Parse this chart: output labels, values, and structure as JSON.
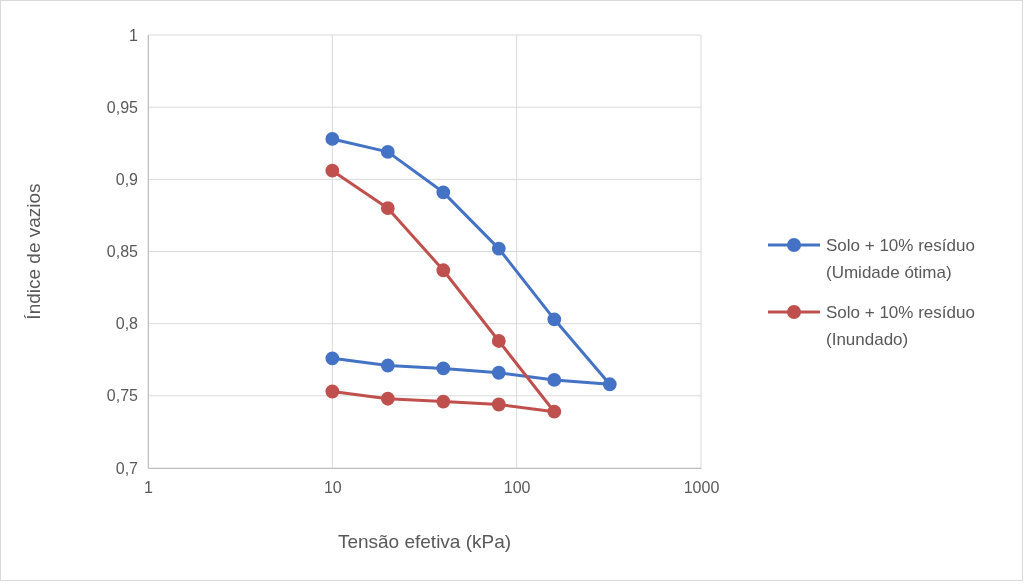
{
  "chart_data": {
    "type": "line",
    "xlabel": "Tensão efetiva (kPa)",
    "ylabel": "Índice de vazios",
    "log": "x",
    "xlim": [
      1,
      1000
    ],
    "xticks": [
      1,
      10,
      100,
      1000
    ],
    "ylim": [
      0.7,
      1
    ],
    "yticks": [
      {
        "value": 0.7,
        "label": "0,7"
      },
      {
        "value": 0.75,
        "label": "0,75"
      },
      {
        "value": 0.8,
        "label": "0,8"
      },
      {
        "value": 0.85,
        "label": "0,85"
      },
      {
        "value": 0.9,
        "label": "0,9"
      },
      {
        "value": 0.95,
        "label": "0,95"
      },
      {
        "value": 1,
        "label": "1"
      }
    ],
    "grid": true,
    "legend": "right",
    "marker": "circle",
    "line_style": "solid",
    "series": [
      {
        "name": "Solo + 10% resíduo (Umidade ótima)",
        "color": "#4472c4",
        "x": [
          10,
          20,
          40,
          80,
          160,
          320,
          160,
          80,
          40,
          20,
          10
        ],
        "values": [
          0.928,
          0.919,
          0.891,
          0.852,
          0.803,
          0.758,
          0.761,
          0.766,
          0.769,
          0.771,
          0.776
        ]
      },
      {
        "name": "Solo + 10% resíduo (Inundado)",
        "color": "#c0504d",
        "x": [
          10,
          20,
          40,
          80,
          160,
          80,
          40,
          20,
          10
        ],
        "values": [
          0.906,
          0.88,
          0.837,
          0.788,
          0.739,
          0.744,
          0.746,
          0.748,
          0.753
        ]
      }
    ]
  }
}
